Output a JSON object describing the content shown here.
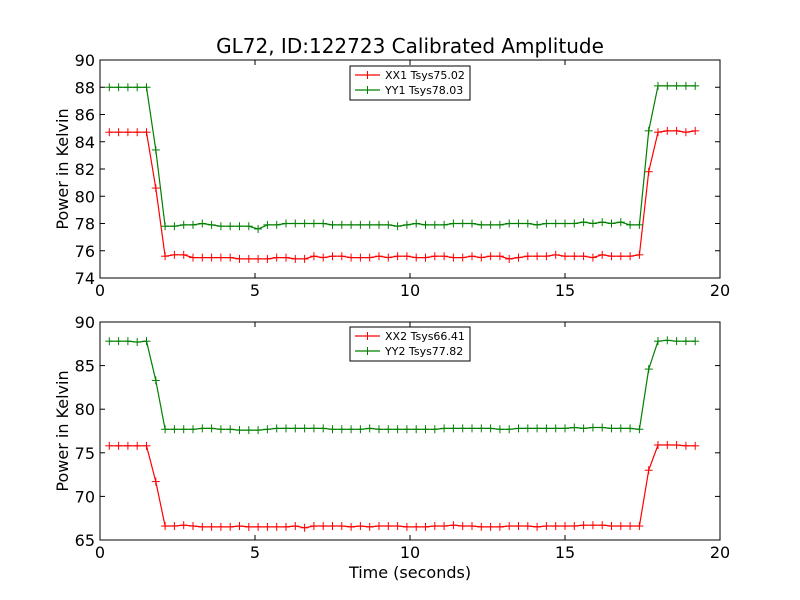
{
  "title": "GL72, ID:122723 Calibrated Amplitude",
  "chart_data": [
    {
      "type": "line",
      "xlabel": "",
      "ylabel": "Power in Kelvin",
      "xlim": [
        0,
        20
      ],
      "ylim": [
        74,
        90
      ],
      "xticks": [
        0,
        5,
        10,
        15,
        20
      ],
      "yticks": [
        74,
        76,
        78,
        80,
        82,
        84,
        86,
        88,
        90
      ],
      "grid": false,
      "legend_placement": "upper center",
      "x": [
        0.3,
        0.6,
        0.9,
        1.2,
        1.5,
        1.8,
        2.1,
        2.4,
        2.7,
        3.0,
        3.3,
        3.6,
        3.9,
        4.2,
        4.5,
        4.8,
        5.1,
        5.4,
        5.7,
        6.0,
        6.3,
        6.6,
        6.9,
        7.2,
        7.5,
        7.8,
        8.1,
        8.4,
        8.7,
        9.0,
        9.3,
        9.6,
        9.9,
        10.2,
        10.5,
        10.8,
        11.1,
        11.4,
        11.7,
        12.0,
        12.3,
        12.6,
        12.9,
        13.2,
        13.5,
        13.8,
        14.1,
        14.4,
        14.7,
        15.0,
        15.3,
        15.6,
        15.9,
        16.2,
        16.5,
        16.8,
        17.1,
        17.4,
        17.7,
        18.0,
        18.3,
        18.6,
        18.9,
        19.2
      ],
      "series": [
        {
          "name": "XX1 Tsys75.02",
          "color": "#ff0000",
          "values": [
            84.7,
            84.7,
            84.7,
            84.7,
            84.7,
            80.6,
            75.6,
            75.7,
            75.7,
            75.5,
            75.5,
            75.5,
            75.5,
            75.5,
            75.4,
            75.4,
            75.4,
            75.4,
            75.5,
            75.5,
            75.4,
            75.4,
            75.6,
            75.5,
            75.6,
            75.6,
            75.5,
            75.5,
            75.5,
            75.6,
            75.5,
            75.6,
            75.6,
            75.5,
            75.5,
            75.6,
            75.6,
            75.5,
            75.5,
            75.6,
            75.5,
            75.6,
            75.6,
            75.4,
            75.5,
            75.6,
            75.6,
            75.6,
            75.7,
            75.6,
            75.6,
            75.6,
            75.5,
            75.7,
            75.6,
            75.6,
            75.6,
            75.7,
            81.8,
            84.7,
            84.8,
            84.8,
            84.7,
            84.8
          ]
        },
        {
          "name": "YY1 Tsys78.03",
          "color": "#008000",
          "values": [
            88.0,
            88.0,
            88.0,
            88.0,
            88.0,
            83.4,
            77.8,
            77.8,
            77.9,
            77.9,
            78.0,
            77.9,
            77.8,
            77.8,
            77.8,
            77.8,
            77.6,
            77.9,
            77.9,
            78.0,
            78.0,
            78.0,
            78.0,
            78.0,
            77.9,
            77.9,
            77.9,
            77.9,
            77.9,
            77.9,
            77.9,
            77.8,
            77.9,
            78.0,
            77.9,
            77.9,
            77.9,
            78.0,
            78.0,
            78.0,
            77.9,
            77.9,
            77.9,
            78.0,
            78.0,
            78.0,
            77.9,
            78.0,
            78.0,
            78.0,
            78.0,
            78.1,
            78.0,
            78.1,
            78.0,
            78.1,
            77.9,
            77.9,
            84.8,
            88.1,
            88.1,
            88.1,
            88.1,
            88.1
          ]
        }
      ]
    },
    {
      "type": "line",
      "xlabel": "Time (seconds)",
      "ylabel": "Power in Kelvin",
      "xlim": [
        0,
        20
      ],
      "ylim": [
        65,
        90
      ],
      "xticks": [
        0,
        5,
        10,
        15,
        20
      ],
      "yticks": [
        65,
        70,
        75,
        80,
        85,
        90
      ],
      "grid": false,
      "legend_placement": "upper center",
      "x": [
        0.3,
        0.6,
        0.9,
        1.2,
        1.5,
        1.8,
        2.1,
        2.4,
        2.7,
        3.0,
        3.3,
        3.6,
        3.9,
        4.2,
        4.5,
        4.8,
        5.1,
        5.4,
        5.7,
        6.0,
        6.3,
        6.6,
        6.9,
        7.2,
        7.5,
        7.8,
        8.1,
        8.4,
        8.7,
        9.0,
        9.3,
        9.6,
        9.9,
        10.2,
        10.5,
        10.8,
        11.1,
        11.4,
        11.7,
        12.0,
        12.3,
        12.6,
        12.9,
        13.2,
        13.5,
        13.8,
        14.1,
        14.4,
        14.7,
        15.0,
        15.3,
        15.6,
        15.9,
        16.2,
        16.5,
        16.8,
        17.1,
        17.4,
        17.7,
        18.0,
        18.3,
        18.6,
        18.9,
        19.2
      ],
      "series": [
        {
          "name": "XX2 Tsys66.41",
          "color": "#ff0000",
          "values": [
            75.8,
            75.8,
            75.8,
            75.8,
            75.8,
            71.7,
            66.6,
            66.6,
            66.7,
            66.6,
            66.5,
            66.5,
            66.5,
            66.5,
            66.6,
            66.5,
            66.5,
            66.5,
            66.5,
            66.5,
            66.6,
            66.4,
            66.6,
            66.6,
            66.6,
            66.6,
            66.5,
            66.6,
            66.5,
            66.6,
            66.6,
            66.6,
            66.5,
            66.5,
            66.5,
            66.6,
            66.6,
            66.7,
            66.6,
            66.6,
            66.5,
            66.5,
            66.5,
            66.6,
            66.6,
            66.6,
            66.5,
            66.6,
            66.6,
            66.6,
            66.6,
            66.7,
            66.7,
            66.7,
            66.6,
            66.6,
            66.6,
            66.6,
            73.0,
            75.9,
            75.9,
            75.9,
            75.8,
            75.8
          ]
        },
        {
          "name": "YY2 Tsys77.82",
          "color": "#008000",
          "values": [
            87.8,
            87.8,
            87.8,
            87.7,
            87.8,
            83.3,
            77.7,
            77.7,
            77.7,
            77.7,
            77.8,
            77.8,
            77.7,
            77.7,
            77.6,
            77.6,
            77.6,
            77.7,
            77.8,
            77.8,
            77.8,
            77.8,
            77.8,
            77.8,
            77.7,
            77.7,
            77.7,
            77.7,
            77.8,
            77.7,
            77.7,
            77.7,
            77.7,
            77.7,
            77.7,
            77.7,
            77.8,
            77.8,
            77.8,
            77.8,
            77.8,
            77.8,
            77.7,
            77.7,
            77.8,
            77.8,
            77.8,
            77.8,
            77.8,
            77.8,
            77.9,
            77.8,
            77.9,
            77.9,
            77.8,
            77.8,
            77.8,
            77.7,
            84.6,
            87.8,
            87.9,
            87.8,
            87.8,
            87.8
          ]
        }
      ]
    }
  ]
}
